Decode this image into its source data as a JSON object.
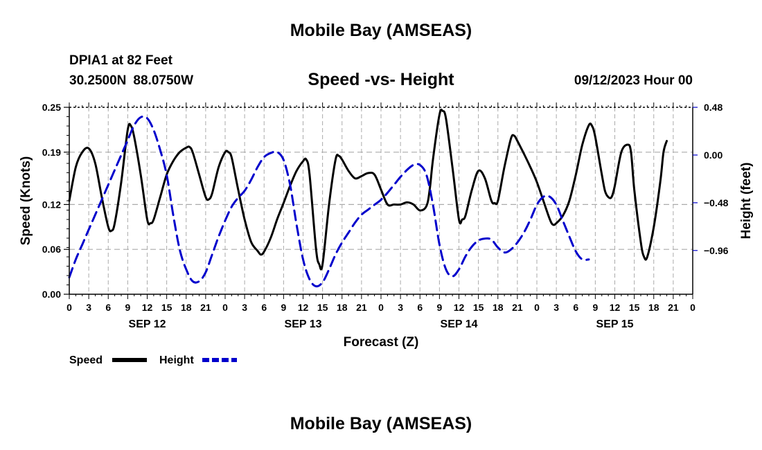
{
  "header": {
    "title": "Mobile Bay (AMSEAS)",
    "station": "DPIA1 at 82 Feet",
    "lat": "30.2500N",
    "lon": "88.0750W",
    "subtitle": "Speed -vs- Height",
    "datetime": "09/12/2023 Hour 00"
  },
  "footer": {
    "title": "Mobile Bay (AMSEAS)"
  },
  "chart_data": {
    "type": "line",
    "title": "Speed -vs- Height",
    "xlabel": "Forecast (Z)",
    "ylabel": "Speed (Knots)",
    "y2label": "Height (feet)",
    "x_unit": "hours from 09/12/2023 00Z",
    "xlim": [
      0,
      96
    ],
    "ylim": [
      0,
      0.25
    ],
    "y2lim": [
      -1.4,
      0.48
    ],
    "hour_tick_labels": [
      "0",
      "3",
      "6",
      "9",
      "12",
      "15",
      "18",
      "21",
      "0",
      "3",
      "6",
      "9",
      "12",
      "15",
      "18",
      "21",
      "0",
      "3",
      "6",
      "9",
      "12",
      "15",
      "18",
      "21",
      "0",
      "3",
      "6",
      "9",
      "12",
      "15",
      "18",
      "21",
      "0"
    ],
    "day_labels": [
      {
        "label": "SEP 12",
        "hour": 12
      },
      {
        "label": "SEP 13",
        "hour": 36
      },
      {
        "label": "SEP 14",
        "hour": 60
      },
      {
        "label": "SEP 15",
        "hour": 84
      }
    ],
    "y_ticks": [
      {
        "value": 0.0,
        "label": "0.00"
      },
      {
        "value": 0.06,
        "label": "0.06"
      },
      {
        "value": 0.12,
        "label": "0.12"
      },
      {
        "value": 0.19,
        "label": "0.19"
      },
      {
        "value": 0.25,
        "label": "0.25"
      }
    ],
    "y2_ticks": [
      {
        "value": 0.48,
        "label": "0.48"
      },
      {
        "value": 0.0,
        "label": "0.00"
      },
      {
        "value": -0.48,
        "label": "−0.48"
      },
      {
        "value": -0.96,
        "label": "−0.96"
      }
    ],
    "grid": true,
    "legend": "bottom-left",
    "series": [
      {
        "name": "Speed",
        "axis": "left",
        "color": "#000000",
        "style": "solid",
        "points": [
          [
            0,
            0.125
          ],
          [
            1,
            0.17
          ],
          [
            2,
            0.19
          ],
          [
            3,
            0.195
          ],
          [
            4,
            0.175
          ],
          [
            5,
            0.13
          ],
          [
            6,
            0.09
          ],
          [
            6.5,
            0.085
          ],
          [
            7,
            0.095
          ],
          [
            8,
            0.15
          ],
          [
            9,
            0.22
          ],
          [
            9.5,
            0.225
          ],
          [
            10,
            0.21
          ],
          [
            11,
            0.16
          ],
          [
            12,
            0.1
          ],
          [
            12.5,
            0.095
          ],
          [
            13,
            0.1
          ],
          [
            14,
            0.13
          ],
          [
            15,
            0.16
          ],
          [
            16,
            0.178
          ],
          [
            17,
            0.19
          ],
          [
            18,
            0.196
          ],
          [
            18.5,
            0.197
          ],
          [
            19,
            0.19
          ],
          [
            20,
            0.16
          ],
          [
            21,
            0.13
          ],
          [
            21.5,
            0.127
          ],
          [
            22,
            0.135
          ],
          [
            23,
            0.17
          ],
          [
            24,
            0.19
          ],
          [
            24.5,
            0.19
          ],
          [
            25,
            0.183
          ],
          [
            26,
            0.14
          ],
          [
            27,
            0.1
          ],
          [
            28,
            0.07
          ],
          [
            29,
            0.058
          ],
          [
            29.5,
            0.053
          ],
          [
            30,
            0.057
          ],
          [
            31,
            0.075
          ],
          [
            32,
            0.1
          ],
          [
            33,
            0.122
          ],
          [
            34,
            0.145
          ],
          [
            35,
            0.165
          ],
          [
            36,
            0.178
          ],
          [
            36.5,
            0.18
          ],
          [
            37,
            0.16
          ],
          [
            38,
            0.06
          ],
          [
            38.5,
            0.04
          ],
          [
            39,
            0.04
          ],
          [
            40,
            0.12
          ],
          [
            41,
            0.18
          ],
          [
            41.5,
            0.185
          ],
          [
            42,
            0.18
          ],
          [
            43,
            0.165
          ],
          [
            44,
            0.155
          ],
          [
            45,
            0.158
          ],
          [
            46,
            0.162
          ],
          [
            47,
            0.16
          ],
          [
            48,
            0.14
          ],
          [
            49,
            0.12
          ],
          [
            50,
            0.12
          ],
          [
            51,
            0.12
          ],
          [
            52,
            0.123
          ],
          [
            53,
            0.12
          ],
          [
            54,
            0.112
          ],
          [
            55,
            0.118
          ],
          [
            55.5,
            0.14
          ],
          [
            56,
            0.18
          ],
          [
            57,
            0.24
          ],
          [
            57.5,
            0.245
          ],
          [
            58,
            0.235
          ],
          [
            59,
            0.17
          ],
          [
            60,
            0.1
          ],
          [
            60.5,
            0.1
          ],
          [
            61,
            0.105
          ],
          [
            62,
            0.14
          ],
          [
            63,
            0.165
          ],
          [
            64,
            0.155
          ],
          [
            65,
            0.125
          ],
          [
            65.5,
            0.122
          ],
          [
            66,
            0.125
          ],
          [
            67,
            0.17
          ],
          [
            68,
            0.208
          ],
          [
            68.5,
            0.212
          ],
          [
            69,
            0.205
          ],
          [
            70,
            0.188
          ],
          [
            71,
            0.17
          ],
          [
            72,
            0.15
          ],
          [
            73,
            0.125
          ],
          [
            74,
            0.1
          ],
          [
            74.5,
            0.093
          ],
          [
            75,
            0.095
          ],
          [
            76,
            0.105
          ],
          [
            77,
            0.125
          ],
          [
            78,
            0.16
          ],
          [
            79,
            0.2
          ],
          [
            80,
            0.226
          ],
          [
            80.5,
            0.225
          ],
          [
            81,
            0.21
          ],
          [
            82,
            0.16
          ],
          [
            82.5,
            0.138
          ],
          [
            83,
            0.13
          ],
          [
            83.5,
            0.13
          ],
          [
            84,
            0.145
          ],
          [
            85,
            0.19
          ],
          [
            86,
            0.2
          ],
          [
            86.5,
            0.19
          ],
          [
            87,
            0.14
          ],
          [
            88,
            0.07
          ],
          [
            88.5,
            0.05
          ],
          [
            89,
            0.05
          ],
          [
            90,
            0.09
          ],
          [
            91,
            0.15
          ],
          [
            91.5,
            0.19
          ],
          [
            92,
            0.205
          ]
        ]
      },
      {
        "name": "Height",
        "axis": "right",
        "color": "#0000cc",
        "style": "dashed",
        "points": [
          [
            0,
            -1.23
          ],
          [
            1,
            -1.05
          ],
          [
            2,
            -0.9
          ],
          [
            3,
            -0.75
          ],
          [
            4,
            -0.6
          ],
          [
            5,
            -0.45
          ],
          [
            6,
            -0.3
          ],
          [
            7,
            -0.15
          ],
          [
            8,
            0.0
          ],
          [
            9,
            0.15
          ],
          [
            10,
            0.3
          ],
          [
            11,
            0.38
          ],
          [
            12,
            0.37
          ],
          [
            13,
            0.25
          ],
          [
            14,
            0.05
          ],
          [
            15,
            -0.2
          ],
          [
            16,
            -0.6
          ],
          [
            17,
            -0.95
          ],
          [
            18,
            -1.15
          ],
          [
            19,
            -1.27
          ],
          [
            20,
            -1.27
          ],
          [
            21,
            -1.18
          ],
          [
            22,
            -1.0
          ],
          [
            23,
            -0.82
          ],
          [
            24,
            -0.66
          ],
          [
            25,
            -0.52
          ],
          [
            26,
            -0.43
          ],
          [
            27,
            -0.36
          ],
          [
            28,
            -0.25
          ],
          [
            29,
            -0.12
          ],
          [
            30,
            -0.02
          ],
          [
            31,
            0.02
          ],
          [
            32,
            0.03
          ],
          [
            33,
            -0.05
          ],
          [
            34,
            -0.3
          ],
          [
            35,
            -0.7
          ],
          [
            36,
            -1.05
          ],
          [
            37,
            -1.25
          ],
          [
            38,
            -1.32
          ],
          [
            39,
            -1.28
          ],
          [
            40,
            -1.15
          ],
          [
            41,
            -1.0
          ],
          [
            42,
            -0.88
          ],
          [
            43,
            -0.78
          ],
          [
            44,
            -0.68
          ],
          [
            45,
            -0.6
          ],
          [
            46,
            -0.55
          ],
          [
            47,
            -0.5
          ],
          [
            48,
            -0.45
          ],
          [
            49,
            -0.38
          ],
          [
            50,
            -0.3
          ],
          [
            51,
            -0.22
          ],
          [
            52,
            -0.15
          ],
          [
            53,
            -0.1
          ],
          [
            54,
            -0.1
          ],
          [
            55,
            -0.2
          ],
          [
            56,
            -0.5
          ],
          [
            57,
            -0.9
          ],
          [
            58,
            -1.15
          ],
          [
            59,
            -1.22
          ],
          [
            60,
            -1.15
          ],
          [
            61,
            -1.02
          ],
          [
            62,
            -0.92
          ],
          [
            63,
            -0.86
          ],
          [
            64,
            -0.84
          ],
          [
            65,
            -0.85
          ],
          [
            66,
            -0.93
          ],
          [
            67,
            -0.98
          ],
          [
            68,
            -0.95
          ],
          [
            69,
            -0.88
          ],
          [
            70,
            -0.78
          ],
          [
            71,
            -0.65
          ],
          [
            72,
            -0.5
          ],
          [
            73,
            -0.42
          ],
          [
            74,
            -0.42
          ],
          [
            75,
            -0.5
          ],
          [
            76,
            -0.66
          ],
          [
            77,
            -0.82
          ],
          [
            78,
            -0.97
          ],
          [
            79,
            -1.05
          ],
          [
            80,
            -1.05
          ]
        ]
      }
    ]
  }
}
